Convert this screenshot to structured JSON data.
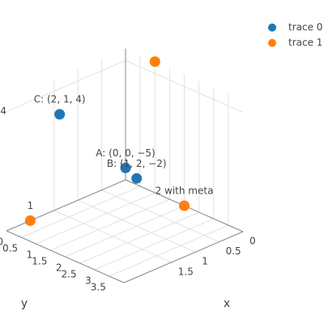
{
  "chart_data": {
    "type": "scatter3d",
    "series": [
      {
        "name": "trace 0",
        "color": "#1f77b4",
        "x": [
          0,
          1,
          2
        ],
        "y": [
          0,
          2,
          1
        ],
        "z": [
          -5,
          -2,
          4
        ],
        "text": [
          "A: (0, 0, −5)",
          "B: (1, 2, −2)",
          "C: (2, 1, 4)"
        ]
      },
      {
        "name": "trace 1",
        "color": "#ff7f0e",
        "x": [
          0,
          2,
          0
        ],
        "y": [
          1,
          0,
          2
        ],
        "z": [
          5,
          -6,
          -6
        ],
        "text": [
          null,
          "1",
          "2 with meta"
        ]
      }
    ],
    "xlabel": "x",
    "ylabel": "y",
    "xlim": [
      0,
      2.5
    ],
    "ylim": [
      0,
      4
    ],
    "zlim": [
      -6,
      5
    ],
    "xticks": [
      0,
      0.5,
      1,
      1.5
    ],
    "yticks": [
      0,
      0.5,
      1,
      1.5,
      2,
      2.5,
      3,
      3.5
    ],
    "zticks": [
      4
    ],
    "grid": true,
    "legend": "top-right"
  }
}
